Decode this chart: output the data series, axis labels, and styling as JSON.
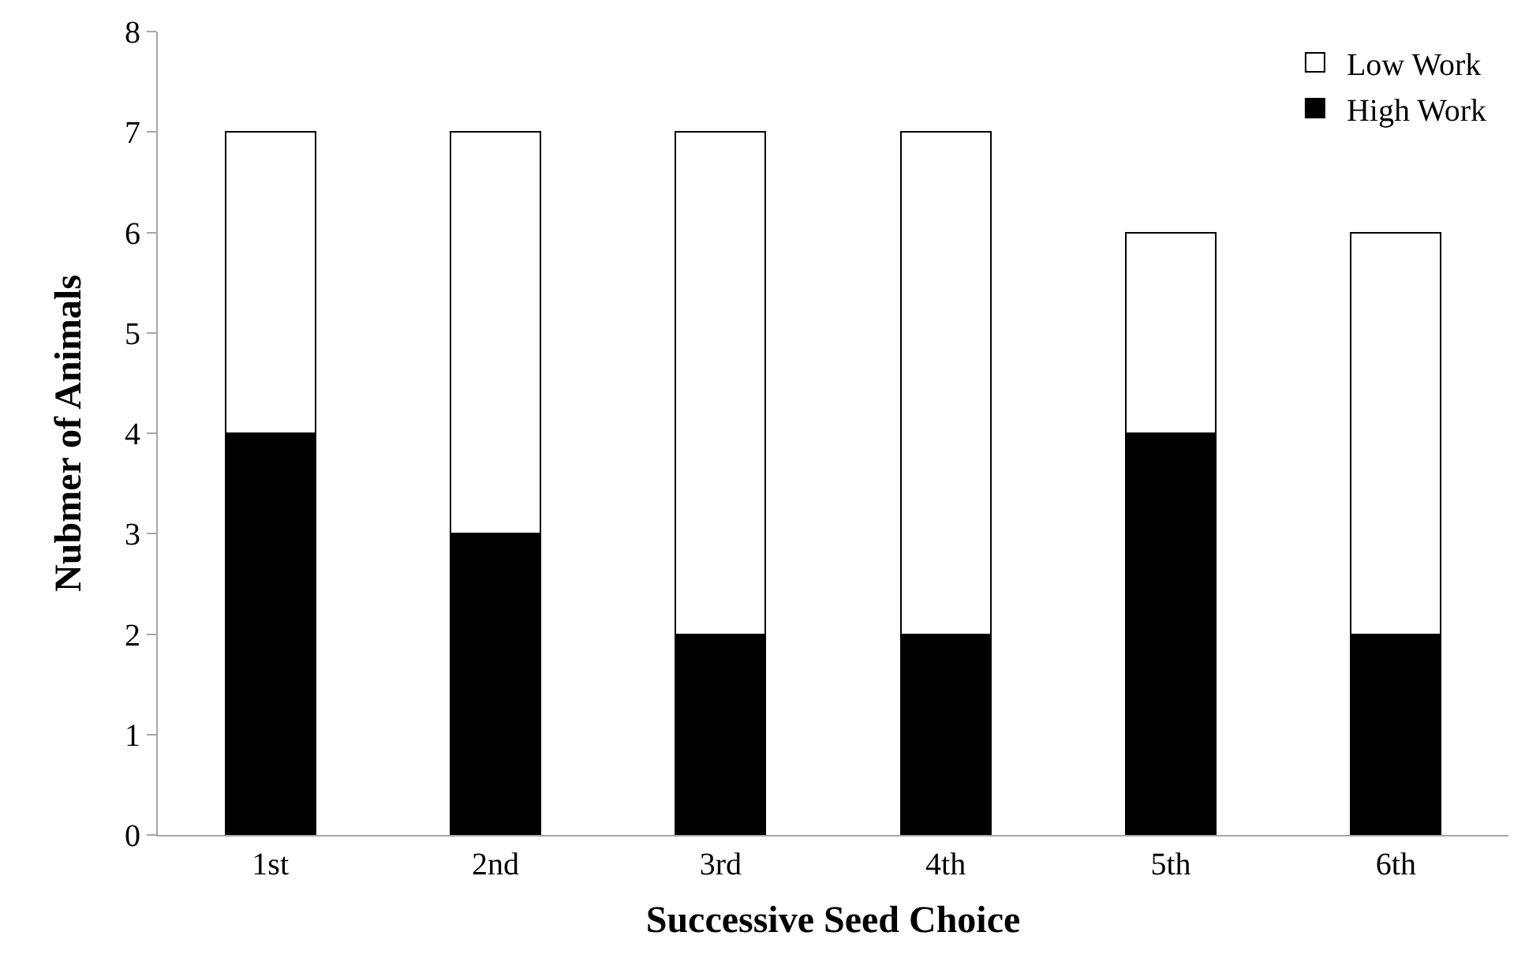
{
  "chart_data": {
    "type": "bar",
    "xlabel": "Successive Seed Choice",
    "ylabel": "Nubmer of Animals",
    "categories": [
      "1st",
      "2nd",
      "3rd",
      "4th",
      "5th",
      "6th"
    ],
    "series": [
      {
        "name": "High Work",
        "color": "#000000",
        "values": [
          4,
          3,
          2,
          2,
          4,
          2
        ]
      },
      {
        "name": "Low Work",
        "color": "#ffffff",
        "values": [
          3,
          4,
          5,
          5,
          2,
          4
        ]
      }
    ],
    "stacked": true,
    "ylim": [
      0,
      8
    ],
    "yticks": [
      0,
      1,
      2,
      3,
      4,
      5,
      6,
      7,
      8
    ],
    "legend": "top right"
  }
}
